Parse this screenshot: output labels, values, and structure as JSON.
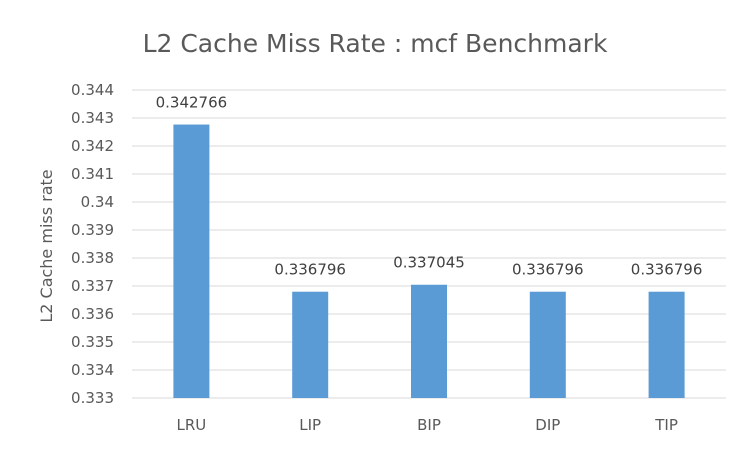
{
  "chart_data": {
    "type": "bar",
    "title": "L2 Cache Miss Rate : mcf Benchmark",
    "xlabel": "",
    "ylabel": "L2 Cache miss rate",
    "categories": [
      "LRU",
      "LIP",
      "BIP",
      "DIP",
      "TIP"
    ],
    "values": [
      0.342766,
      0.336796,
      0.337045,
      0.336796,
      0.336796
    ],
    "data_labels": [
      "0.342766",
      "0.336796",
      "0.337045",
      "0.336796",
      "0.336796"
    ],
    "ylim": [
      0.333,
      0.344
    ],
    "yticks": [
      0.333,
      0.334,
      0.335,
      0.336,
      0.337,
      0.338,
      0.339,
      0.34,
      0.341,
      0.342,
      0.343,
      0.344
    ],
    "ytick_labels": [
      "0.333",
      "0.334",
      "0.335",
      "0.336",
      "0.337",
      "0.338",
      "0.339",
      "0.34",
      "0.341",
      "0.342",
      "0.343",
      "0.344"
    ],
    "grid": true,
    "legend": "none",
    "bar_color": "#5b9bd5"
  }
}
